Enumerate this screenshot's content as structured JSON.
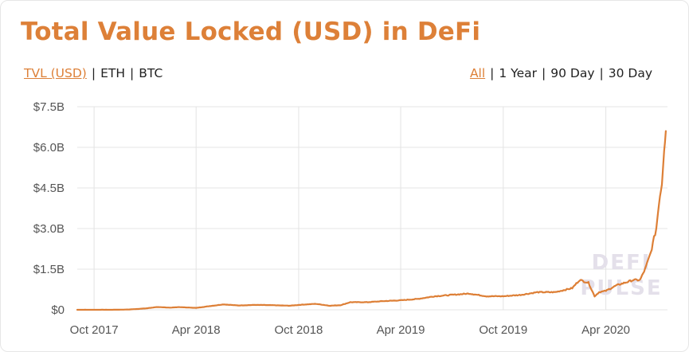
{
  "title": "Total Value Locked (USD) in DeFi",
  "unit_toggle": [
    {
      "label": "TVL (USD)",
      "active": true
    },
    {
      "label": "ETH",
      "active": false
    },
    {
      "label": "BTC",
      "active": false
    }
  ],
  "range_toggle": [
    {
      "label": "All",
      "active": true
    },
    {
      "label": "1 Year",
      "active": false
    },
    {
      "label": "90 Day",
      "active": false
    },
    {
      "label": "30 Day",
      "active": false
    }
  ],
  "watermark": [
    "DEFI",
    "PULSE"
  ],
  "colors": {
    "accent": "#dd8038",
    "line": "#dd7f36",
    "grid": "#e4e4e4",
    "tick": "#555555",
    "watermark": "#e4e0ea"
  },
  "chart_data": {
    "type": "line",
    "title": "Total Value Locked (USD) in DeFi",
    "xlabel": "",
    "ylabel": "",
    "x_ticks": [
      "Oct 2017",
      "Apr 2018",
      "Oct 2018",
      "Apr 2019",
      "Oct 2019",
      "Apr 2020"
    ],
    "y_ticks": [
      "$0",
      "$1.5B",
      "$3.0B",
      "$4.5B",
      "$6.0B",
      "$7.5B"
    ],
    "ylim": [
      0,
      7.5
    ],
    "xlim": [
      "2017-09-01",
      "2020-07-20"
    ],
    "grid": true,
    "legend": "none",
    "series": [
      {
        "unit": "USD billions",
        "points": [
          [
            "2017-09-01",
            0.0
          ],
          [
            "2017-10-01",
            0.0
          ],
          [
            "2017-11-01",
            0.0
          ],
          [
            "2017-12-01",
            0.01
          ],
          [
            "2018-01-01",
            0.05
          ],
          [
            "2018-01-20",
            0.1
          ],
          [
            "2018-02-15",
            0.08
          ],
          [
            "2018-03-01",
            0.1
          ],
          [
            "2018-04-01",
            0.07
          ],
          [
            "2018-05-01",
            0.15
          ],
          [
            "2018-05-20",
            0.2
          ],
          [
            "2018-06-15",
            0.16
          ],
          [
            "2018-07-15",
            0.18
          ],
          [
            "2018-08-15",
            0.17
          ],
          [
            "2018-09-15",
            0.15
          ],
          [
            "2018-10-01",
            0.18
          ],
          [
            "2018-11-01",
            0.22
          ],
          [
            "2018-11-25",
            0.15
          ],
          [
            "2018-12-15",
            0.17
          ],
          [
            "2019-01-01",
            0.28
          ],
          [
            "2019-02-01",
            0.28
          ],
          [
            "2019-03-01",
            0.32
          ],
          [
            "2019-04-01",
            0.35
          ],
          [
            "2019-05-01",
            0.4
          ],
          [
            "2019-06-01",
            0.5
          ],
          [
            "2019-07-01",
            0.55
          ],
          [
            "2019-08-01",
            0.6
          ],
          [
            "2019-09-01",
            0.5
          ],
          [
            "2019-10-01",
            0.5
          ],
          [
            "2019-11-01",
            0.55
          ],
          [
            "2019-12-01",
            0.65
          ],
          [
            "2020-01-01",
            0.65
          ],
          [
            "2020-02-01",
            0.8
          ],
          [
            "2020-02-14",
            1.1
          ],
          [
            "2020-03-01",
            1.0
          ],
          [
            "2020-03-12",
            0.5
          ],
          [
            "2020-03-20",
            0.65
          ],
          [
            "2020-04-01",
            0.7
          ],
          [
            "2020-04-20",
            0.9
          ],
          [
            "2020-05-05",
            1.0
          ],
          [
            "2020-05-20",
            1.1
          ],
          [
            "2020-06-01",
            1.1
          ],
          [
            "2020-06-10",
            1.5
          ],
          [
            "2020-06-20",
            2.1
          ],
          [
            "2020-06-30",
            3.0
          ],
          [
            "2020-07-05",
            4.0
          ],
          [
            "2020-07-10",
            4.7
          ],
          [
            "2020-07-14",
            6.0
          ],
          [
            "2020-07-17",
            6.6
          ]
        ]
      }
    ]
  }
}
